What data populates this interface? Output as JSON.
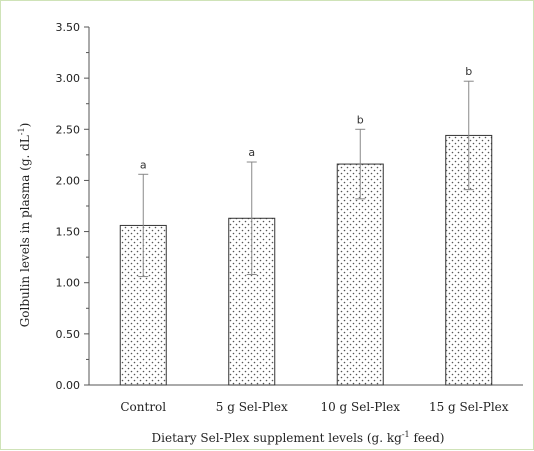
{
  "chart_data": {
    "type": "bar",
    "categories": [
      "Control",
      "5 g Sel-Plex",
      "10 g Sel-Plex",
      "15 g Sel-Plex"
    ],
    "values": [
      1.56,
      1.63,
      2.16,
      2.44
    ],
    "error_upper": [
      2.06,
      2.18,
      2.5,
      2.97
    ],
    "error_lower": [
      1.06,
      1.08,
      1.82,
      1.91
    ],
    "significance": [
      "a",
      "a",
      "b",
      "b"
    ],
    "yticks": [
      "0.00",
      "0.50",
      "1.00",
      "1.50",
      "2.00",
      "2.50",
      "3.00",
      "3.50"
    ],
    "ylim": [
      0,
      3.5
    ],
    "ylabel": {
      "main": "Golbulin levels in plasma (g. dL",
      "sup": "-1",
      "end": ")"
    },
    "xlabel": {
      "main": "Dietary Sel-Plex supplement levels (g. kg",
      "sup": "-1",
      "end": " feed)"
    },
    "bar_fill": "dotted",
    "colors": {
      "axis": "#555555",
      "bar_edge": "#333333",
      "error_bar": "#888888"
    },
    "grid": false
  }
}
